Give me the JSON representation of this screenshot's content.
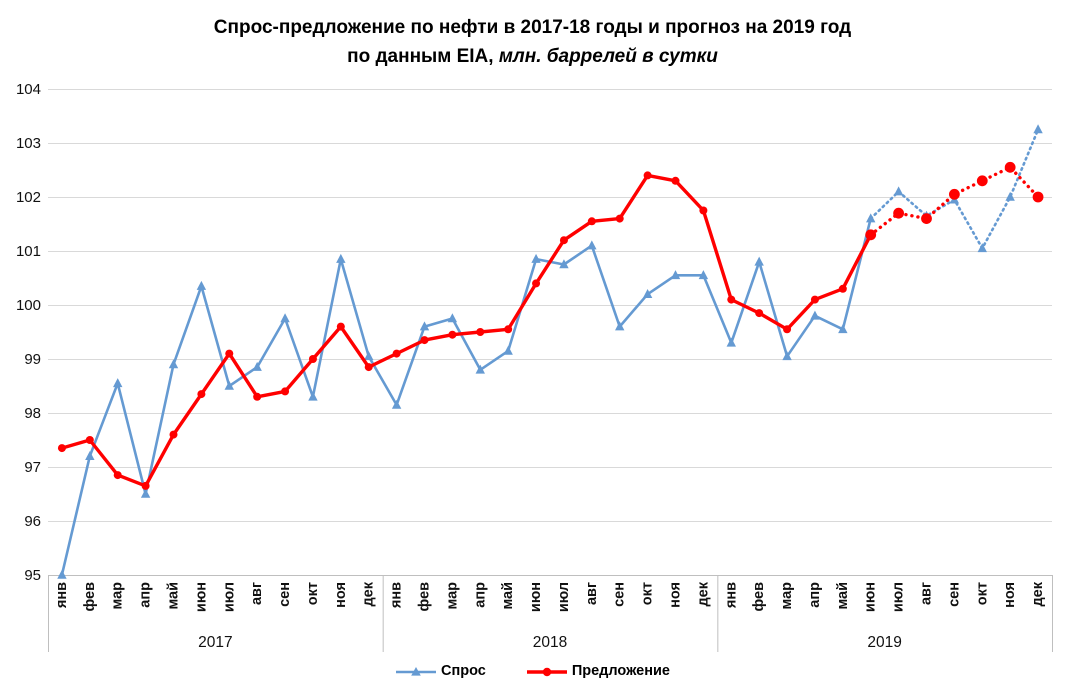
{
  "title": {
    "line1": "Спрос-предложение по нефти в 2017-18 годы и прогноз на 2019 год",
    "line2_bold": "по данным EIA,",
    "line2_italic": " млн. баррелей в сутки"
  },
  "chart_data": {
    "type": "line",
    "title": "Спрос-предложение по нефти в 2017-18 годы и прогноз на 2019 год по данным EIA, млн. баррелей в сутки",
    "categories_months": [
      "янв",
      "фев",
      "мар",
      "апр",
      "май",
      "июн",
      "июл",
      "авг",
      "сен",
      "окт",
      "ноя",
      "дек"
    ],
    "categories_years": [
      "2017",
      "2018",
      "2019"
    ],
    "yticks": [
      95,
      96,
      97,
      98,
      99,
      100,
      101,
      102,
      103,
      104
    ],
    "ylim": [
      95,
      104
    ],
    "grid": true,
    "legend_position": "bottom",
    "grid_color": "#D9D9D9",
    "axis_color": "#BFBFBF",
    "series": [
      {
        "name": "Спрос",
        "slug": "demand",
        "color": "#659AD2",
        "marker": "triangle",
        "dotted_from_index": 29,
        "values": [
          95.0,
          97.2,
          98.55,
          96.5,
          98.9,
          100.35,
          98.5,
          98.85,
          99.75,
          98.3,
          100.85,
          99.05,
          98.15,
          99.6,
          99.75,
          98.8,
          99.15,
          100.85,
          100.75,
          101.1,
          99.6,
          100.2,
          100.55,
          100.55,
          99.3,
          100.8,
          99.05,
          99.8,
          99.55,
          101.6,
          102.1,
          101.65,
          101.95,
          101.05,
          102.0,
          103.25
        ]
      },
      {
        "name": "Предложение",
        "slug": "supply",
        "color": "#FF0000",
        "marker": "circle",
        "dotted_from_index": 29,
        "values": [
          97.35,
          97.5,
          96.85,
          96.65,
          97.6,
          98.35,
          99.1,
          98.3,
          98.4,
          99.0,
          99.6,
          98.85,
          99.1,
          99.35,
          99.45,
          99.5,
          99.55,
          100.4,
          101.2,
          101.55,
          101.6,
          102.4,
          102.3,
          101.75,
          100.1,
          99.85,
          99.55,
          100.1,
          100.3,
          101.3,
          101.7,
          101.6,
          102.05,
          102.3,
          102.55,
          102.0
        ]
      }
    ]
  }
}
